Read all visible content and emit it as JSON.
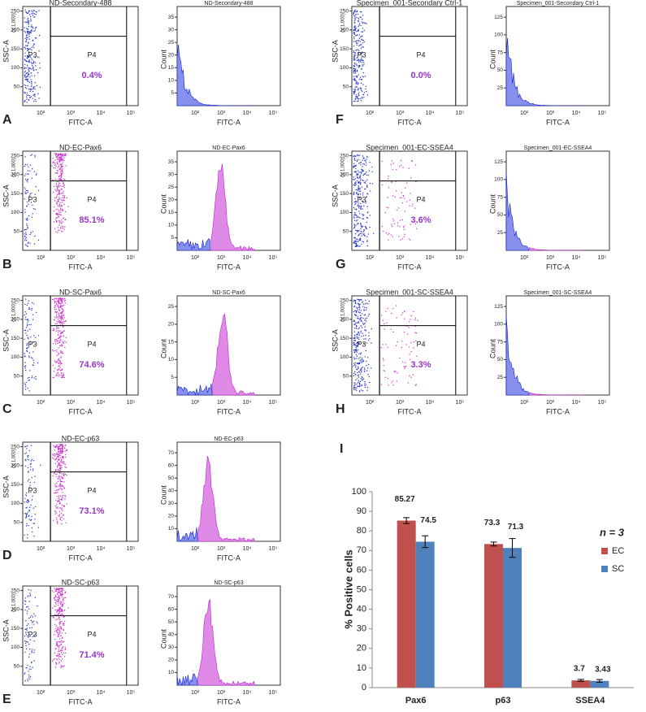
{
  "axis_text": {
    "ssc": "SSC-A",
    "scale": "(x 1,000)",
    "fitc": "FITC-A",
    "count": "Count",
    "gate_low": "P3",
    "gate_high": "P4"
  },
  "scatter_yticks": [
    50,
    100,
    150,
    200,
    250
  ],
  "log_xticks": [
    "10²",
    "10³",
    "10⁴",
    "10⁵"
  ],
  "panels": [
    {
      "label": "A",
      "scatter_title": "ND-Secondary-488",
      "hist_title": "ND-Secondary-488",
      "percent": "0.4%",
      "hist_yticks": [
        5,
        10,
        15,
        20,
        25,
        30,
        35
      ]
    },
    {
      "label": "B",
      "scatter_title": "ND-EC-Pax6",
      "hist_title": "ND-EC-Pax6",
      "percent": "85.1%",
      "hist_yticks": [
        5,
        10,
        15,
        20,
        25,
        30,
        35
      ]
    },
    {
      "label": "C",
      "scatter_title": "ND-SC-Pax6",
      "hist_title": "ND-SC-Pax6",
      "percent": "74.6%",
      "hist_yticks": [
        5,
        10,
        15,
        20,
        25
      ]
    },
    {
      "label": "D",
      "scatter_title": "ND-EC-p63",
      "hist_title": "ND-EC-p63",
      "percent": "73.1%",
      "hist_yticks": [
        10,
        20,
        30,
        40,
        50,
        60,
        70
      ]
    },
    {
      "label": "E",
      "scatter_title": "ND-SC-p63",
      "hist_title": "ND-SC-p63",
      "percent": "71.4%",
      "hist_yticks": [
        10,
        20,
        30,
        40,
        50,
        60,
        70
      ]
    },
    {
      "label": "F",
      "scatter_title": "Specimen_001-Secondary Ctrl-1",
      "hist_title": "Specimen_001-Secondary Ctrl-1",
      "percent": "0.0%",
      "hist_yticks": [
        25,
        50,
        75,
        100,
        125
      ]
    },
    {
      "label": "G",
      "scatter_title": "Specimen_001-EC-SSEA4",
      "hist_title": "Specimen_001-EC-SSEA4",
      "percent": "3.6%",
      "hist_yticks": [
        25,
        50,
        75,
        100,
        125
      ]
    },
    {
      "label": "H",
      "scatter_title": "Specimen_001-SC-SSEA4",
      "hist_title": "Specimen_001-SC-SSEA4",
      "percent": "3.3%",
      "hist_yticks": [
        25,
        50,
        75,
        100,
        125
      ]
    }
  ],
  "chart_data": {
    "type": "bar",
    "panel_label": "I",
    "y_label": "% Positive cells",
    "legend_title": "n = 3",
    "categories": [
      "Pax6",
      "p63",
      "SSEA4"
    ],
    "series": [
      {
        "name": "EC",
        "color": "#c0504d",
        "values": [
          85.27,
          73.3,
          3.7
        ],
        "errors": [
          1.5,
          1,
          0.5
        ]
      },
      {
        "name": "SC",
        "color": "#4f81bd",
        "values": [
          74.5,
          71.3,
          3.43
        ],
        "errors": [
          3,
          4.8,
          0.7
        ]
      }
    ],
    "ylim": [
      0,
      100
    ],
    "yticks": [
      0,
      10,
      20,
      30,
      40,
      50,
      60,
      70,
      80,
      90,
      100
    ],
    "grid": false
  }
}
